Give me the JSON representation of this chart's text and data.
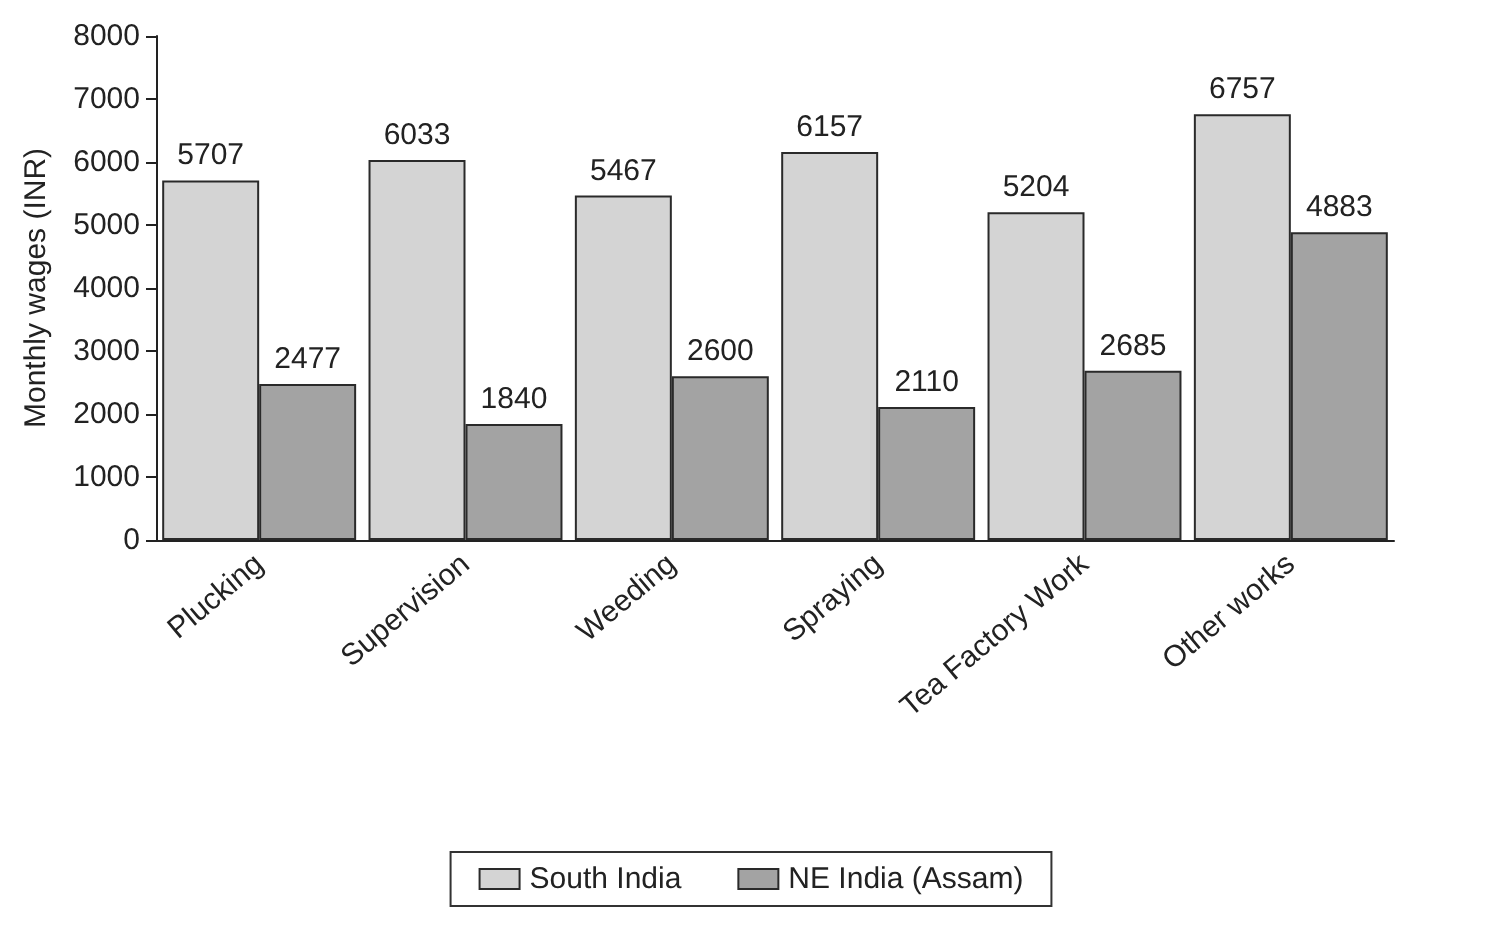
{
  "chart_data": {
    "type": "bar",
    "ylabel": "Monthly wages (INR)",
    "categories": [
      "Plucking",
      "Supervision",
      "Weeding",
      "Spraying",
      "Tea Factory Work",
      "Other works"
    ],
    "series": [
      {
        "name": "South India",
        "color": "#d4d4d4",
        "values": [
          5707,
          6033,
          5467,
          6157,
          5204,
          6757
        ]
      },
      {
        "name": "NE India (Assam)",
        "color": "#a3a3a3",
        "values": [
          2477,
          1840,
          2600,
          2110,
          2685,
          4883
        ]
      }
    ],
    "ylim": [
      0,
      8000
    ],
    "yticks": [
      0,
      1000,
      2000,
      3000,
      4000,
      5000,
      6000,
      7000,
      8000
    ],
    "data_labels": true,
    "grid": false,
    "legend": "bottom"
  }
}
